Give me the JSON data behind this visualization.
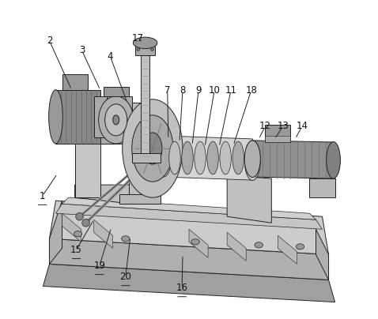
{
  "background_color": "#ffffff",
  "line_color": "#222222",
  "font_size": 8.5,
  "underline_nums": [
    "1",
    "15",
    "16",
    "19",
    "20"
  ],
  "annotations": {
    "1": {
      "lp": [
        0.038,
        0.385
      ],
      "le": [
        0.085,
        0.455
      ]
    },
    "2": {
      "lp": [
        0.06,
        0.875
      ],
      "le": [
        0.13,
        0.72
      ]
    },
    "3": {
      "lp": [
        0.162,
        0.845
      ],
      "le": [
        0.22,
        0.72
      ]
    },
    "4": {
      "lp": [
        0.252,
        0.825
      ],
      "le": [
        0.305,
        0.68
      ]
    },
    "7": {
      "lp": [
        0.432,
        0.718
      ],
      "le": [
        0.435,
        0.565
      ]
    },
    "8": {
      "lp": [
        0.48,
        0.718
      ],
      "le": [
        0.47,
        0.555
      ]
    },
    "9": {
      "lp": [
        0.53,
        0.718
      ],
      "le": [
        0.51,
        0.545
      ]
    },
    "10": {
      "lp": [
        0.58,
        0.718
      ],
      "le": [
        0.55,
        0.54
      ]
    },
    "11": {
      "lp": [
        0.632,
        0.718
      ],
      "le": [
        0.595,
        0.54
      ]
    },
    "12": {
      "lp": [
        0.74,
        0.605
      ],
      "le": [
        0.72,
        0.565
      ]
    },
    "13": {
      "lp": [
        0.796,
        0.605
      ],
      "le": [
        0.77,
        0.565
      ]
    },
    "14": {
      "lp": [
        0.856,
        0.605
      ],
      "le": [
        0.835,
        0.565
      ]
    },
    "15": {
      "lp": [
        0.145,
        0.215
      ],
      "le": [
        0.2,
        0.31
      ]
    },
    "16": {
      "lp": [
        0.478,
        0.095
      ],
      "le": [
        0.48,
        0.2
      ]
    },
    "17": {
      "lp": [
        0.338,
        0.882
      ],
      "le": [
        0.355,
        0.87
      ]
    },
    "18": {
      "lp": [
        0.696,
        0.718
      ],
      "le": [
        0.64,
        0.545
      ]
    },
    "19": {
      "lp": [
        0.218,
        0.165
      ],
      "le": [
        0.255,
        0.285
      ]
    },
    "20": {
      "lp": [
        0.3,
        0.13
      ],
      "le": [
        0.315,
        0.255
      ]
    }
  }
}
